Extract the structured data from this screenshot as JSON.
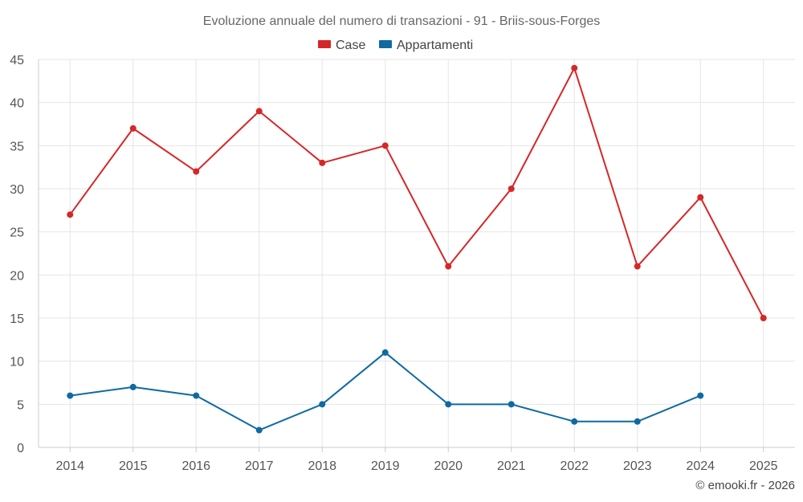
{
  "chart_data": {
    "type": "line",
    "title": "Evoluzione annuale del numero di transazioni - 91 - Briis-sous-Forges",
    "categories": [
      "2014",
      "2015",
      "2016",
      "2017",
      "2018",
      "2019",
      "2020",
      "2021",
      "2022",
      "2023",
      "2024",
      "2025"
    ],
    "series": [
      {
        "name": "Case",
        "color": "#d62728",
        "values": [
          27,
          37,
          32,
          39,
          33,
          35,
          21,
          30,
          44,
          21,
          29,
          15
        ]
      },
      {
        "name": "Appartamenti",
        "color": "#0f6aa1",
        "values": [
          6,
          7,
          6,
          2,
          5,
          11,
          5,
          5,
          3,
          3,
          6,
          null
        ]
      }
    ],
    "ylim": [
      0,
      45
    ],
    "yticks": [
      0,
      5,
      10,
      15,
      20,
      25,
      30,
      35,
      40,
      45
    ],
    "grid": true,
    "legend_position": "top-center",
    "credit": "© emooki.fr - 2026"
  }
}
